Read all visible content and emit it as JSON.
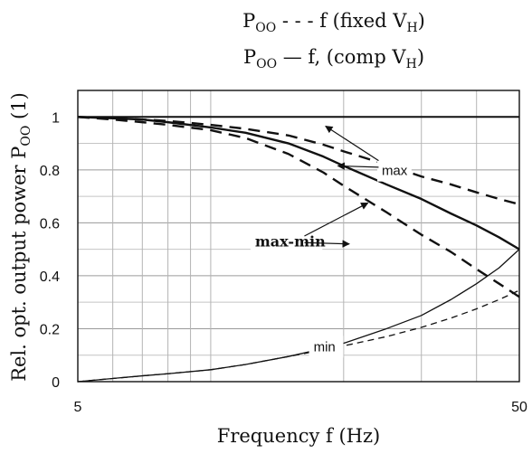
{
  "chart_data": {
    "type": "line",
    "title": "Pₒₒ - - - f (fixed Vʜ)",
    "title_lines": [
      {
        "main": "P",
        "sub": "OO",
        "rest": " - - - f (fixed V",
        "sub2": "H",
        "end": ")"
      },
      {
        "main": "P",
        "sub": "OO",
        "rest": " — f, (comp V",
        "sub2": "H",
        "end": ")"
      }
    ],
    "xlabel": "Frequency f (Hz)",
    "ylabel": {
      "main": "Rel. opt. output power P",
      "sub": "OO",
      "end": " (1)"
    },
    "x_scale": "log",
    "xlim": [
      5,
      50
    ],
    "ylim": [
      0,
      1.1
    ],
    "x_ticks": [
      5,
      50
    ],
    "y_ticks": [
      0,
      0.2,
      0.4,
      0.6,
      0.8,
      1
    ],
    "y_tick_labels": [
      "0",
      "0.2",
      "0.4",
      "0.6",
      "0.8",
      "1"
    ],
    "x_tick_labels": [
      "5",
      "50"
    ],
    "grid": true,
    "series": [
      {
        "style": "solid",
        "width": 2,
        "x": [
          5,
          50
        ],
        "y": [
          1.0,
          1.0
        ]
      },
      {
        "style": "solid",
        "width": 2.4,
        "x": [
          5,
          6,
          7,
          8,
          10,
          12,
          15,
          18,
          20,
          25,
          30,
          35,
          40,
          45,
          50
        ],
        "y": [
          1.0,
          0.995,
          0.99,
          0.98,
          0.96,
          0.94,
          0.9,
          0.85,
          0.815,
          0.745,
          0.69,
          0.635,
          0.59,
          0.545,
          0.5
        ]
      },
      {
        "style": "dashed",
        "width": 2.4,
        "x": [
          5,
          6,
          7,
          8,
          10,
          12,
          15,
          18,
          20,
          25,
          30,
          35,
          40,
          45,
          50
        ],
        "y": [
          1.0,
          0.995,
          0.99,
          0.985,
          0.97,
          0.955,
          0.93,
          0.895,
          0.87,
          0.82,
          0.775,
          0.745,
          0.715,
          0.69,
          0.67
        ]
      },
      {
        "style": "dashed",
        "width": 2.4,
        "x": [
          5,
          6,
          7,
          8,
          10,
          12,
          15,
          18,
          20,
          25,
          30,
          35,
          40,
          45,
          50
        ],
        "y": [
          1.0,
          0.99,
          0.98,
          0.97,
          0.95,
          0.92,
          0.86,
          0.79,
          0.74,
          0.64,
          0.555,
          0.49,
          0.425,
          0.37,
          0.32
        ]
      },
      {
        "style": "solid",
        "width": 1.3,
        "x": [
          5,
          6,
          7,
          8,
          10,
          12,
          15,
          18,
          20,
          25,
          30,
          35,
          40,
          45,
          50
        ],
        "y": [
          0.0,
          0.012,
          0.022,
          0.03,
          0.045,
          0.065,
          0.095,
          0.125,
          0.145,
          0.2,
          0.25,
          0.31,
          0.37,
          0.43,
          0.5
        ]
      },
      {
        "style": "dashed",
        "width": 1.3,
        "x": [
          5,
          6,
          7,
          8,
          10,
          12,
          15,
          18,
          20,
          25,
          30,
          35,
          40,
          45,
          50
        ],
        "y": [
          0.0,
          0.012,
          0.022,
          0.03,
          0.045,
          0.065,
          0.095,
          0.12,
          0.135,
          0.17,
          0.205,
          0.24,
          0.275,
          0.31,
          0.345
        ]
      }
    ],
    "annotations": [
      {
        "text": "max",
        "text_x": 24.4,
        "text_y": 0.78,
        "style": "sans",
        "size": 15,
        "arrows": [
          {
            "from_x": 24.0,
            "from_y": 0.835,
            "to_x": 18.2,
            "to_y": 0.965
          },
          {
            "from_x": 24.0,
            "from_y": 0.81,
            "to_x": 19.4,
            "to_y": 0.815
          }
        ]
      },
      {
        "text": "max-min",
        "text_x": 12.6,
        "text_y": 0.51,
        "style": "serif-bold",
        "size": 16,
        "arrows": [
          {
            "from_x": 16.3,
            "from_y": 0.55,
            "to_x": 22.7,
            "to_y": 0.675
          },
          {
            "from_x": 16.3,
            "from_y": 0.525,
            "to_x": 20.6,
            "to_y": 0.52
          }
        ]
      },
      {
        "text": "min",
        "text_x": 17.1,
        "text_y": 0.115,
        "style": "sans",
        "size": 15,
        "arrows": []
      }
    ]
  }
}
